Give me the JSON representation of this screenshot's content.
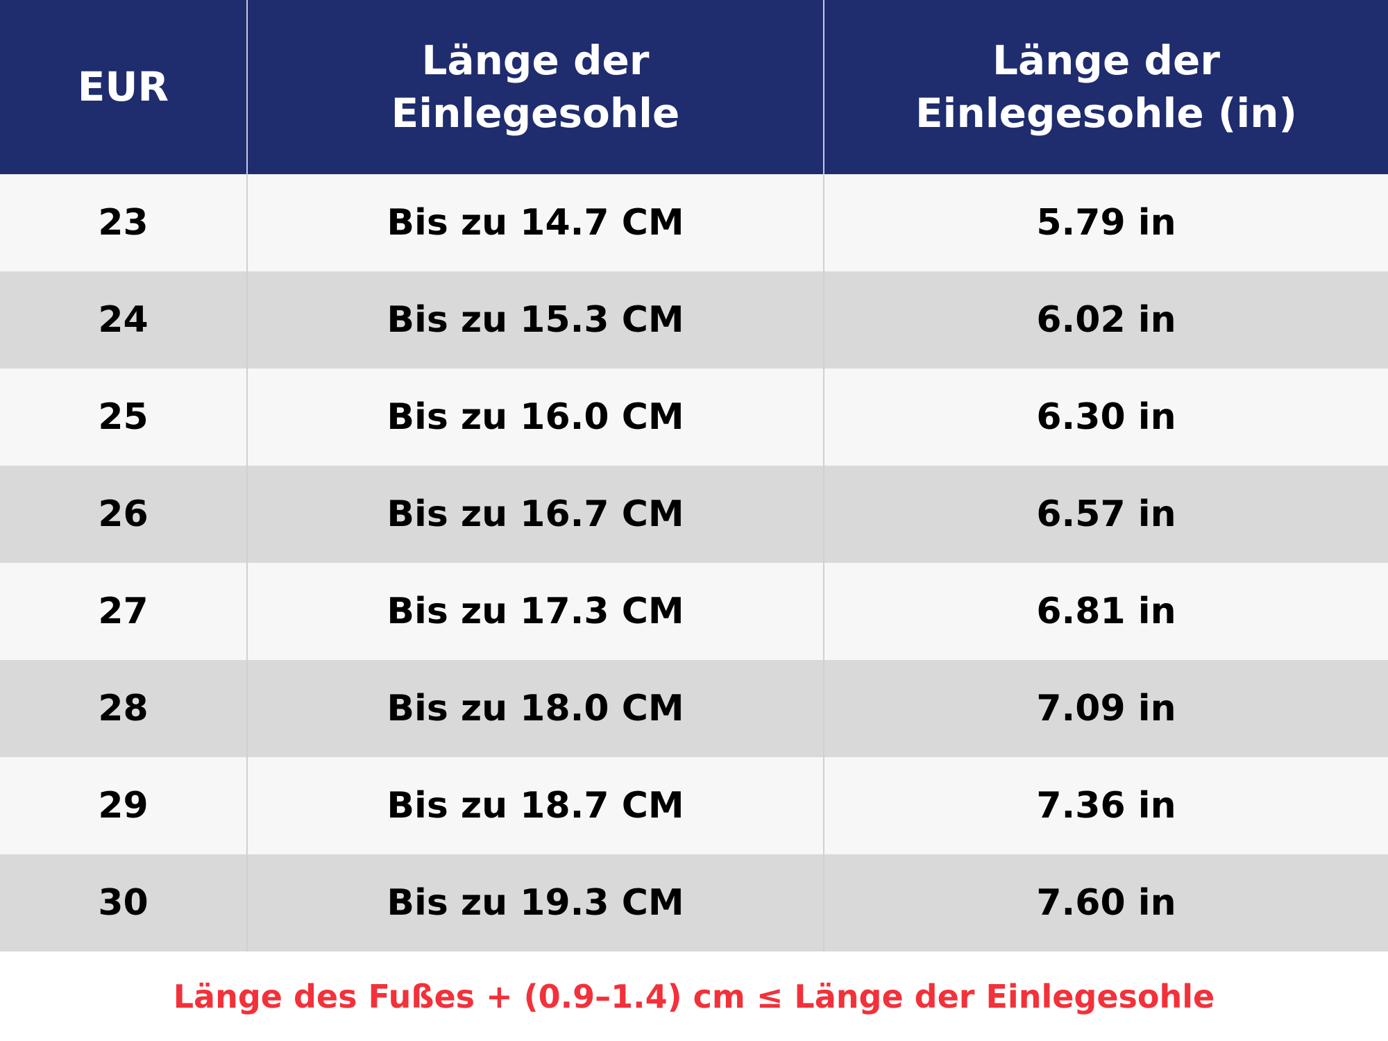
{
  "table": {
    "header": [
      "EUR",
      "Länge der Einlegesohle",
      "Länge der Einlegesohle (in)"
    ],
    "rows": [
      [
        "23",
        "Bis zu 14.7 CM",
        "5.79 in"
      ],
      [
        "24",
        "Bis zu 15.3 CM",
        "6.02 in"
      ],
      [
        "25",
        "Bis zu 16.0 CM",
        "6.30 in"
      ],
      [
        "26",
        "Bis zu 16.7 CM",
        "6.57 in"
      ],
      [
        "27",
        "Bis zu 17.3 CM",
        "6.81 in"
      ],
      [
        "28",
        "Bis zu 18.0 CM",
        "7.09 in"
      ],
      [
        "29",
        "Bis zu 18.7 CM",
        "7.36 in"
      ],
      [
        "30",
        "Bis zu 19.3 CM",
        "7.60 in"
      ]
    ]
  },
  "footer": {
    "note": "Länge des Fußes + (0.9–1.4) cm ≤ Länge der Einlegesohle"
  }
}
